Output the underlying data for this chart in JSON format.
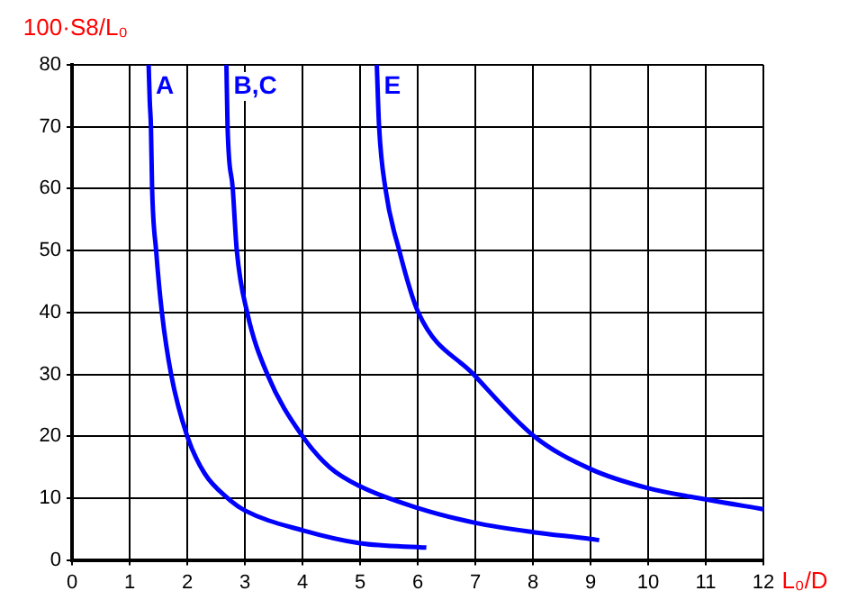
{
  "chart_data": {
    "type": "line",
    "xlabel": "L₀/D",
    "ylabel": "100·S8/L₀",
    "xlim": [
      0,
      12
    ],
    "ylim": [
      0,
      80
    ],
    "xticks": [
      0,
      1,
      2,
      3,
      4,
      5,
      6,
      7,
      8,
      9,
      10,
      11,
      12
    ],
    "yticks": [
      0,
      10,
      20,
      30,
      40,
      50,
      60,
      70,
      80
    ],
    "grid": true,
    "legend": false,
    "marker": "none",
    "line_style": "solid",
    "series": [
      {
        "name": "A",
        "color": "#0000ff",
        "x": [
          1.33,
          1.35,
          1.37,
          1.39,
          1.46,
          1.56,
          1.72,
          2,
          2.3,
          2.7,
          3,
          4,
          5,
          6.15
        ],
        "values": [
          80,
          74,
          70,
          60,
          50,
          40,
          30,
          20,
          14,
          10,
          8,
          4.8,
          2.7,
          2
        ]
      },
      {
        "name": "B,C",
        "color": "#0000ff",
        "x": [
          2.68,
          2.7,
          2.79,
          2.86,
          3.04,
          3.39,
          4,
          4.47,
          5,
          6,
          7,
          8,
          9,
          9.15
        ],
        "values": [
          80,
          70,
          60,
          50,
          40,
          30,
          20,
          15,
          11.9,
          8.4,
          6,
          4.5,
          3.4,
          3.2
        ]
      },
      {
        "name": "E",
        "color": "#0000ff",
        "x": [
          5.29,
          5.33,
          5.44,
          5.68,
          6.01,
          6.97,
          8.02,
          9,
          10,
          11,
          12
        ],
        "values": [
          80,
          70,
          60,
          50,
          40,
          30,
          20,
          14.7,
          11.6,
          9.8,
          8.2
        ]
      }
    ]
  }
}
